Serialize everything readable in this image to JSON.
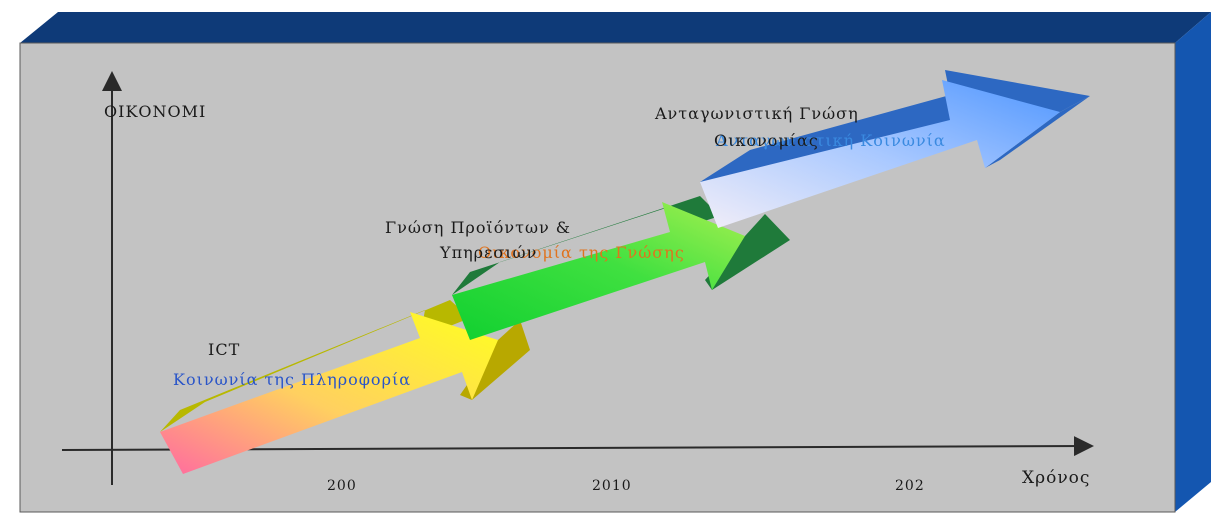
{
  "diagram": {
    "y_axis_label": "ΟΙΚΟΝΟΜΙ",
    "x_axis_label": "Χρόνος",
    "x_ticks": [
      "200",
      "2010",
      "202"
    ],
    "stages": [
      {
        "technology": "ICT",
        "society": "Κοινωνία της Πληροφορία"
      },
      {
        "technology": "Γνώση Προϊόντων &",
        "technology_line2": "Υπηρεσιών",
        "society": "Οικονομία της Γνώσης"
      },
      {
        "technology": "Ανταγωνιστική Γνώση",
        "technology_line2": "Οικονομίας",
        "society": "Ανταγωνιστική Κοινωνία"
      }
    ]
  },
  "colors": {
    "panel_top": "#0e3a78",
    "panel_side": "#1456b0",
    "panel_face": "#c3c3c3"
  }
}
